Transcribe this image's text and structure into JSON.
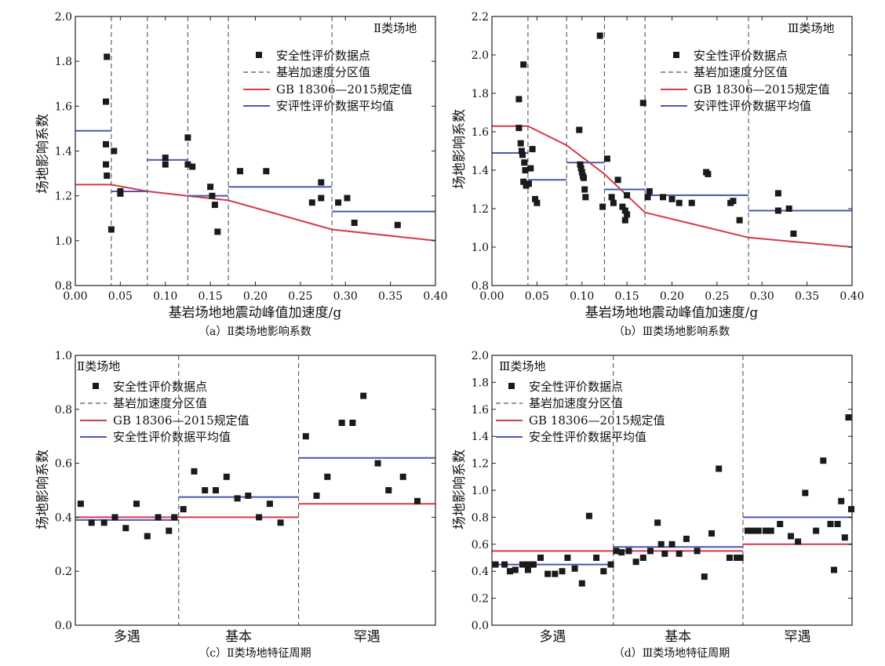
{
  "colors": {
    "gb": "#d43a4c",
    "avg": "#4a59b0",
    "points": "#1a1a1a",
    "divider": "#555555"
  },
  "legend": {
    "points": "安全性评价数据点",
    "divider": "基岩加速度分区值",
    "gb": "GB 18306—2015规定值",
    "avg_a": "安评性评价数据平均值",
    "avg": "安全性评价数据平均值"
  },
  "chart_data": [
    {
      "type": "scatter",
      "panel": "a",
      "caption": "（a）Ⅱ类场地影响系数",
      "site_label": "Ⅱ类场地",
      "xlabel": "基岩场地地震动峰值加速度/g",
      "ylabel": "场地影响系数",
      "xlim": [
        0,
        0.4
      ],
      "ylim": [
        0.8,
        2.0
      ],
      "xticks": [
        "0.00",
        "0.05",
        "0.10",
        "0.15",
        "0.20",
        "0.25",
        "0.30",
        "0.35",
        "0.40"
      ],
      "yticks": [
        "0.8",
        "1.0",
        "1.2",
        "1.4",
        "1.6",
        "1.8",
        "2.0"
      ],
      "dividers": [
        0.04,
        0.08,
        0.125,
        0.17,
        0.285
      ],
      "gb_line": [
        [
          0,
          1.25
        ],
        [
          0.04,
          1.25
        ],
        [
          0.08,
          1.22
        ],
        [
          0.125,
          1.2
        ],
        [
          0.17,
          1.18
        ],
        [
          0.285,
          1.05
        ],
        [
          0.4,
          1.0
        ]
      ],
      "avg_segments": [
        [
          0,
          0.04,
          1.49
        ],
        [
          0.04,
          0.08,
          1.22
        ],
        [
          0.08,
          0.125,
          1.36
        ],
        [
          0.125,
          0.17,
          1.2
        ],
        [
          0.17,
          0.285,
          1.24
        ],
        [
          0.285,
          0.4,
          1.13
        ]
      ],
      "points": [
        [
          0.035,
          1.82
        ],
        [
          0.034,
          1.62
        ],
        [
          0.034,
          1.43
        ],
        [
          0.034,
          1.34
        ],
        [
          0.035,
          1.29
        ],
        [
          0.04,
          1.05
        ],
        [
          0.043,
          1.4
        ],
        [
          0.05,
          1.21
        ],
        [
          0.05,
          1.22
        ],
        [
          0.1,
          1.37
        ],
        [
          0.1,
          1.34
        ],
        [
          0.125,
          1.46
        ],
        [
          0.125,
          1.34
        ],
        [
          0.13,
          1.33
        ],
        [
          0.15,
          1.24
        ],
        [
          0.152,
          1.2
        ],
        [
          0.155,
          1.16
        ],
        [
          0.158,
          1.04
        ],
        [
          0.183,
          1.31
        ],
        [
          0.212,
          1.31
        ],
        [
          0.263,
          1.17
        ],
        [
          0.273,
          1.19
        ],
        [
          0.273,
          1.26
        ],
        [
          0.292,
          1.17
        ],
        [
          0.302,
          1.19
        ],
        [
          0.31,
          1.08
        ],
        [
          0.358,
          1.07
        ]
      ]
    },
    {
      "type": "scatter",
      "panel": "b",
      "caption": "（b）Ⅲ类场地影响系数",
      "site_label": "Ⅲ类场地",
      "xlabel": "基岩场地地震动峰值加速度/g",
      "ylabel": "场地影响系数",
      "xlim": [
        0,
        0.4
      ],
      "ylim": [
        0.8,
        2.2
      ],
      "xticks": [
        "0.00",
        "0.05",
        "0.10",
        "0.15",
        "0.20",
        "0.25",
        "0.30",
        "0.35",
        "0.40"
      ],
      "yticks": [
        "0.8",
        "1.0",
        "1.2",
        "1.4",
        "1.6",
        "1.8",
        "2.0",
        "2.2"
      ],
      "dividers": [
        0.04,
        0.083,
        0.125,
        0.17,
        0.285
      ],
      "gb_line": [
        [
          0,
          1.63
        ],
        [
          0.04,
          1.63
        ],
        [
          0.083,
          1.53
        ],
        [
          0.125,
          1.38
        ],
        [
          0.17,
          1.18
        ],
        [
          0.285,
          1.05
        ],
        [
          0.4,
          1.0
        ]
      ],
      "avg_segments": [
        [
          0,
          0.04,
          1.49
        ],
        [
          0.04,
          0.083,
          1.35
        ],
        [
          0.083,
          0.125,
          1.44
        ],
        [
          0.125,
          0.17,
          1.3
        ],
        [
          0.17,
          0.285,
          1.27
        ],
        [
          0.285,
          0.4,
          1.19
        ]
      ],
      "points": [
        [
          0.03,
          1.77
        ],
        [
          0.03,
          1.62
        ],
        [
          0.032,
          1.54
        ],
        [
          0.033,
          1.5
        ],
        [
          0.034,
          1.48
        ],
        [
          0.035,
          1.95
        ],
        [
          0.036,
          1.44
        ],
        [
          0.037,
          1.4
        ],
        [
          0.035,
          1.34
        ],
        [
          0.038,
          1.32
        ],
        [
          0.041,
          1.33
        ],
        [
          0.043,
          1.41
        ],
        [
          0.045,
          1.51
        ],
        [
          0.048,
          1.25
        ],
        [
          0.05,
          1.23
        ],
        [
          0.097,
          1.61
        ],
        [
          0.098,
          1.43
        ],
        [
          0.099,
          1.41
        ],
        [
          0.1,
          1.39
        ],
        [
          0.101,
          1.37
        ],
        [
          0.102,
          1.36
        ],
        [
          0.103,
          1.3
        ],
        [
          0.104,
          1.26
        ],
        [
          0.12,
          2.1
        ],
        [
          0.123,
          1.21
        ],
        [
          0.128,
          1.46
        ],
        [
          0.133,
          1.26
        ],
        [
          0.135,
          1.23
        ],
        [
          0.14,
          1.35
        ],
        [
          0.145,
          1.21
        ],
        [
          0.148,
          1.19
        ],
        [
          0.148,
          1.14
        ],
        [
          0.15,
          1.27
        ],
        [
          0.15,
          1.17
        ],
        [
          0.168,
          1.75
        ],
        [
          0.173,
          1.26
        ],
        [
          0.175,
          1.29
        ],
        [
          0.19,
          1.26
        ],
        [
          0.2,
          1.25
        ],
        [
          0.208,
          1.23
        ],
        [
          0.222,
          1.23
        ],
        [
          0.238,
          1.39
        ],
        [
          0.24,
          1.38
        ],
        [
          0.265,
          1.23
        ],
        [
          0.268,
          1.24
        ],
        [
          0.275,
          1.14
        ],
        [
          0.318,
          1.28
        ],
        [
          0.318,
          1.19
        ],
        [
          0.33,
          1.2
        ],
        [
          0.335,
          1.07
        ]
      ]
    },
    {
      "type": "scatter",
      "panel": "c",
      "caption": "（c）Ⅱ类场地特征周期",
      "site_label": "Ⅱ类场地",
      "xlabel": "",
      "ylabel": "场地影响系数",
      "ylim": [
        0,
        1.0
      ],
      "yticks": [
        "0.0",
        "0.2",
        "0.4",
        "0.6",
        "0.8",
        "1.0"
      ],
      "categories": [
        "多遇",
        "基本",
        "罕遇"
      ],
      "cat_bounds": [
        0,
        0.287,
        0.62,
        1.0
      ],
      "gb_line": [
        [
          0,
          0.287,
          0.4
        ],
        [
          0.287,
          0.62,
          0.4
        ],
        [
          0.62,
          1.0,
          0.45
        ]
      ],
      "avg_segments": [
        [
          0,
          0.287,
          0.39
        ],
        [
          0.287,
          0.62,
          0.475
        ],
        [
          0.62,
          1.0,
          0.62
        ]
      ],
      "points": [
        [
          0.015,
          0.45
        ],
        [
          0.045,
          0.38
        ],
        [
          0.08,
          0.38
        ],
        [
          0.11,
          0.4
        ],
        [
          0.14,
          0.36
        ],
        [
          0.17,
          0.45
        ],
        [
          0.2,
          0.33
        ],
        [
          0.23,
          0.4
        ],
        [
          0.26,
          0.35
        ],
        [
          0.275,
          0.4
        ],
        [
          0.3,
          0.43
        ],
        [
          0.33,
          0.57
        ],
        [
          0.36,
          0.5
        ],
        [
          0.39,
          0.5
        ],
        [
          0.42,
          0.55
        ],
        [
          0.45,
          0.47
        ],
        [
          0.48,
          0.48
        ],
        [
          0.51,
          0.4
        ],
        [
          0.54,
          0.45
        ],
        [
          0.57,
          0.38
        ],
        [
          0.64,
          0.7
        ],
        [
          0.67,
          0.48
        ],
        [
          0.7,
          0.55
        ],
        [
          0.74,
          0.75
        ],
        [
          0.77,
          0.75
        ],
        [
          0.8,
          0.85
        ],
        [
          0.84,
          0.6
        ],
        [
          0.87,
          0.5
        ],
        [
          0.91,
          0.55
        ],
        [
          0.95,
          0.46
        ]
      ]
    },
    {
      "type": "scatter",
      "panel": "d",
      "caption": "（d）Ⅲ类场地特征周期",
      "site_label": "Ⅲ类场地",
      "xlabel": "",
      "ylabel": "场地影响系数",
      "ylim": [
        0,
        2.0
      ],
      "yticks": [
        "0.0",
        "0.2",
        "0.4",
        "0.6",
        "0.8",
        "1.0",
        "1.2",
        "1.4",
        "1.6",
        "1.8",
        "2.0"
      ],
      "categories": [
        "多遇",
        "基本",
        "罕遇"
      ],
      "cat_bounds": [
        0,
        0.337,
        0.697,
        1.0
      ],
      "gb_line": [
        [
          0,
          0.337,
          0.55
        ],
        [
          0.337,
          0.697,
          0.55
        ],
        [
          0.697,
          1.0,
          0.6
        ]
      ],
      "avg_segments": [
        [
          0,
          0.337,
          0.45
        ],
        [
          0.337,
          0.697,
          0.58
        ],
        [
          0.697,
          1.0,
          0.8
        ]
      ],
      "points": [
        [
          0.01,
          0.45
        ],
        [
          0.035,
          0.45
        ],
        [
          0.05,
          0.4
        ],
        [
          0.065,
          0.41
        ],
        [
          0.085,
          0.45
        ],
        [
          0.1,
          0.45
        ],
        [
          0.115,
          0.45
        ],
        [
          0.135,
          0.5
        ],
        [
          0.155,
          0.38
        ],
        [
          0.175,
          0.38
        ],
        [
          0.195,
          0.4
        ],
        [
          0.21,
          0.5
        ],
        [
          0.23,
          0.42
        ],
        [
          0.25,
          0.31
        ],
        [
          0.27,
          0.81
        ],
        [
          0.29,
          0.5
        ],
        [
          0.31,
          0.4
        ],
        [
          0.33,
          0.45
        ],
        [
          0.345,
          0.55
        ],
        [
          0.36,
          0.54
        ],
        [
          0.38,
          0.55
        ],
        [
          0.4,
          0.47
        ],
        [
          0.42,
          0.5
        ],
        [
          0.44,
          0.55
        ],
        [
          0.46,
          0.76
        ],
        [
          0.47,
          0.6
        ],
        [
          0.48,
          0.53
        ],
        [
          0.5,
          0.6
        ],
        [
          0.52,
          0.53
        ],
        [
          0.54,
          0.64
        ],
        [
          0.57,
          0.55
        ],
        [
          0.59,
          0.36
        ],
        [
          0.61,
          0.68
        ],
        [
          0.63,
          1.16
        ],
        [
          0.66,
          0.5
        ],
        [
          0.68,
          0.5
        ],
        [
          0.69,
          0.5
        ],
        [
          0.71,
          0.7
        ],
        [
          0.725,
          0.7
        ],
        [
          0.74,
          0.7
        ],
        [
          0.76,
          0.7
        ],
        [
          0.775,
          0.7
        ],
        [
          0.8,
          0.75
        ],
        [
          0.83,
          0.66
        ],
        [
          0.85,
          0.62
        ],
        [
          0.87,
          0.98
        ],
        [
          0.9,
          0.7
        ],
        [
          0.92,
          1.22
        ],
        [
          0.94,
          0.75
        ],
        [
          0.96,
          0.75
        ],
        [
          0.98,
          0.65
        ],
        [
          1.0,
          0.86
        ],
        [
          0.1,
          0.41
        ],
        [
          0.115,
          0.45
        ],
        [
          0.95,
          0.41
        ],
        [
          0.97,
          0.92
        ],
        [
          0.99,
          1.54
        ]
      ]
    }
  ]
}
